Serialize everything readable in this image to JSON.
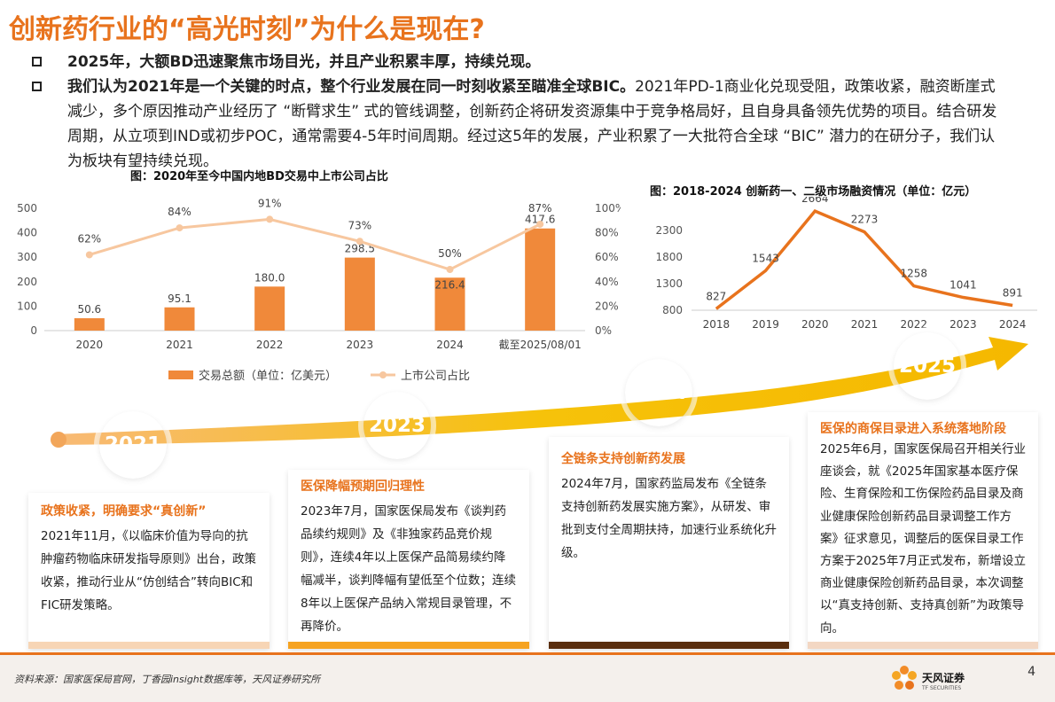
{
  "title": "创新药行业的“高光时刻”为什么是现在?",
  "bullets": [
    {
      "bold": "2025年，大额BD迅速聚焦市场目光，并且产业积累丰厚，持续兑现。",
      "rest": ""
    },
    {
      "bold": "我们认为2021年是一个关键的时点，整个行业发展在同一时刻收紧至瞄准全球BIC。",
      "rest": "2021年PD-1商业化兑现受阻，政策收紧，融资断崖式减少，多个原因推动产业经历了 “断臂求生” 式的管线调整，创新药企将研发资源集中于竞争格局好，且自身具备领先优势的项目。结合研发周期，从立项到IND或初步POC，通常需要4-5年时间周期。经过这5年的发展，产业积累了一大批符合全球 “BIC” 潜力的在研分子，我们认为板块有望持续兑现。"
    }
  ],
  "chart_data": [
    {
      "type": "bar",
      "title": "图：2020年至今中国内地BD交易中上市公司占比",
      "categories": [
        "2020",
        "2021",
        "2022",
        "2023",
        "2024",
        "截至2025/08/01"
      ],
      "series": [
        {
          "name": "交易总额（单位：亿美元）",
          "type": "bar",
          "axis": "left",
          "values": [
            50.6,
            95.1,
            180.0,
            298.5,
            216.4,
            417.6
          ],
          "labels": [
            "50.6",
            "95.1",
            "180.0",
            "298.5",
            "216.4",
            "417.6"
          ]
        },
        {
          "name": "上市公司占比",
          "type": "line",
          "axis": "right",
          "values": [
            62,
            84,
            91,
            73,
            50,
            87
          ],
          "labels": [
            "62%",
            "84%",
            "91%",
            "73%",
            "50%",
            "87%"
          ]
        }
      ],
      "ylim": [
        0,
        500
      ],
      "yticks": [
        "0",
        "100",
        "200",
        "300",
        "400",
        "500"
      ],
      "y2lim": [
        0,
        100
      ],
      "y2ticks": [
        "0%",
        "20%",
        "40%",
        "60%",
        "80%",
        "100%"
      ],
      "legend": "bottom",
      "colors": {
        "bar": "#f0893a",
        "line": "#f7c79f"
      }
    },
    {
      "type": "line",
      "title": "图：2018-2024 创新药一、二级市场融资情况（单位：亿元）",
      "categories": [
        "2018",
        "2019",
        "2020",
        "2021",
        "2022",
        "2023",
        "2024"
      ],
      "values": [
        827,
        1543,
        2664,
        2273,
        1258,
        1041,
        891
      ],
      "labels": [
        "827",
        "1543",
        "2664",
        "2273",
        "1258",
        "1041",
        "891"
      ],
      "ylim": [
        800,
        2800
      ],
      "yticks": [
        "800",
        "1300",
        "1800",
        "2300"
      ],
      "colors": {
        "line": "#e8731d"
      }
    }
  ],
  "timeline": [
    {
      "year": "2021",
      "title": "政策收紧，明确要求“真创新”",
      "body": "2021年11月，《以临床价值为导向的抗肿瘤药物临床研发指导原则》出台，政策收紧，推动行业从“仿创结合”转向BIC和FIC研发策略。",
      "color": "#e8731d",
      "bar": "#f7d5b5"
    },
    {
      "year": "2023",
      "title": "医保降幅预期回归理性",
      "body": "2023年7月，国家医保局发布《谈判药品续约规则》及《非独家药品竞价规则》，连续4年以上医保产品简易续约降幅减半，谈判降幅有望低至个位数；连续8年以上医保产品纳入常规目录管理，不再降价。",
      "color": "#f29a2e",
      "bar": "#f6a321"
    },
    {
      "year": "2024",
      "title": "全链条支持创新药发展",
      "body": "2024年7月，国家药监局发布《全链条支持创新药发展实施方案》，从研发、审批到支付全周期扶持，加速行业系统化升级。",
      "color": "#5a2e0e",
      "bar": "#5a2e0e"
    },
    {
      "year": "2025",
      "title": "医保的商保目录进入系统落地阶段",
      "body": "2025年6月，国家医保局召开相关行业座谈会，就《2025年国家基本医疗保险、生育保险和工伤保险药品目录及商业健康保险创新药品目录调整工作方案》征求意见，调整后的医保目录工作方案于2025年7月正式发布，新增设立商业健康保险创新药品目录，本次调整以“真支持创新、支持真创新”为政策导向。",
      "color": "#d9531e",
      "bar": "#f3d7c3"
    }
  ],
  "footer": {
    "source": "资料来源：国家医保局官网，丁香园insight数据库等，天风证券研究所",
    "logo": "天风证券",
    "logo_sub": "TF SECURITIES",
    "page": "4"
  }
}
